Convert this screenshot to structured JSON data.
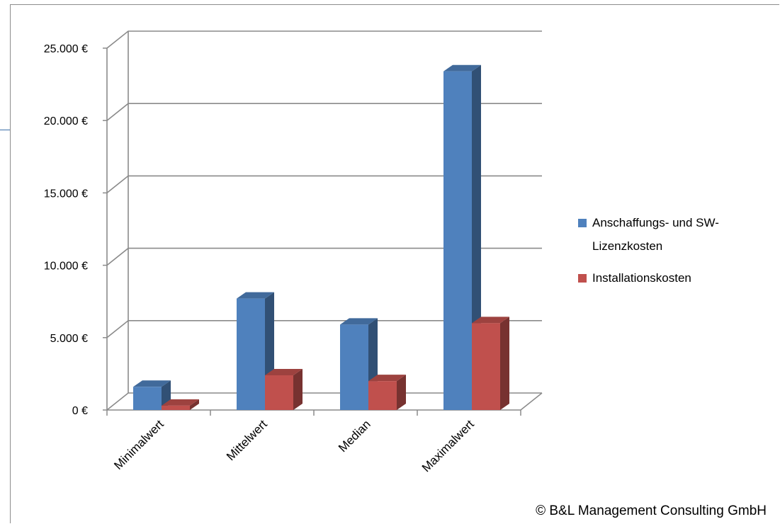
{
  "chart_data": {
    "type": "bar",
    "style": "3d-clustered-column",
    "categories": [
      "Minimalwert",
      "Mittelwert",
      "Median",
      "Maximalwert"
    ],
    "series": [
      {
        "name": "Anschaffungs- und SW-Lizenzkosten",
        "color": "#4f81bd",
        "values": [
          1600,
          7700,
          5900,
          23400
        ]
      },
      {
        "name": "Installationskosten",
        "color": "#c0504d",
        "values": [
          300,
          2400,
          2000,
          6000
        ]
      }
    ],
    "y_ticks": [
      "0 €",
      "5.000 €",
      "10.000 €",
      "15.000 €",
      "20.000 €",
      "25.000 €"
    ],
    "ylim": [
      0,
      25000
    ],
    "grid": true,
    "legend_position": "right",
    "legend_lines": [
      [
        "Anschaffungs- und SW-",
        "Lizenzkosten"
      ],
      [
        "Installationskosten"
      ]
    ],
    "title": "",
    "xlabel": "",
    "ylabel": ""
  },
  "credit": "© B&L Management Consulting GmbH"
}
